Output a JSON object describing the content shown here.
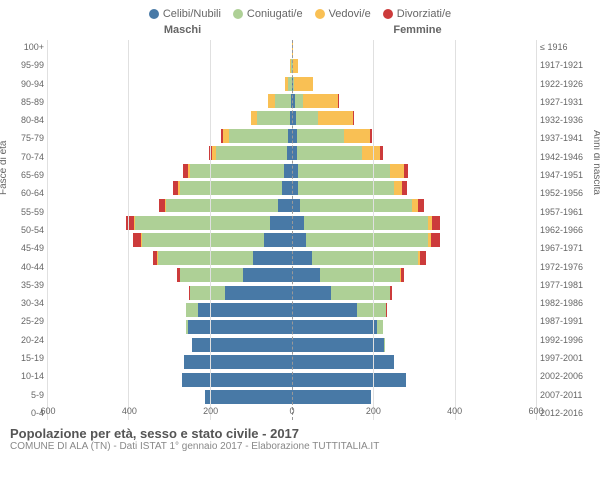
{
  "legend": [
    {
      "label": "Celibi/Nubili",
      "color": "#4879a6"
    },
    {
      "label": "Coniugati/e",
      "color": "#aed096"
    },
    {
      "label": "Vedovi/e",
      "color": "#f9c054"
    },
    {
      "label": "Divorziati/e",
      "color": "#cc3b3b"
    }
  ],
  "section_m": "Maschi",
  "section_f": "Femmine",
  "ylabel_left": "Fasce di età",
  "ylabel_right": "Anni di nascita",
  "title": "Popolazione per età, sesso e stato civile - 2017",
  "subtitle": "COMUNE DI ALA (TN) - Dati ISTAT 1° gennaio 2017 - Elaborazione TUTTITALIA.IT",
  "chart": {
    "type": "population-pyramid",
    "xmax": 600,
    "xticks": [
      0,
      200,
      400,
      600
    ],
    "grid_color": "#e0e0e0",
    "center_color": "#999999",
    "background": "#ffffff",
    "label_fontsize": 9,
    "rows": [
      {
        "age": "100+",
        "birth": "≤ 1916",
        "m": {
          "c": 0,
          "co": 0,
          "v": 0,
          "d": 0
        },
        "f": {
          "c": 0,
          "co": 0,
          "v": 3,
          "d": 0
        }
      },
      {
        "age": "95-99",
        "birth": "1917-1921",
        "m": {
          "c": 0,
          "co": 2,
          "v": 3,
          "d": 0
        },
        "f": {
          "c": 1,
          "co": 1,
          "v": 12,
          "d": 0
        }
      },
      {
        "age": "90-94",
        "birth": "1922-1926",
        "m": {
          "c": 1,
          "co": 8,
          "v": 8,
          "d": 0
        },
        "f": {
          "c": 3,
          "co": 3,
          "v": 45,
          "d": 0
        }
      },
      {
        "age": "85-89",
        "birth": "1927-1931",
        "m": {
          "c": 3,
          "co": 40,
          "v": 15,
          "d": 0
        },
        "f": {
          "c": 8,
          "co": 20,
          "v": 85,
          "d": 1
        }
      },
      {
        "age": "80-84",
        "birth": "1932-1936",
        "m": {
          "c": 5,
          "co": 80,
          "v": 15,
          "d": 2
        },
        "f": {
          "c": 10,
          "co": 55,
          "v": 85,
          "d": 2
        }
      },
      {
        "age": "75-79",
        "birth": "1937-1941",
        "m": {
          "c": 10,
          "co": 145,
          "v": 15,
          "d": 5
        },
        "f": {
          "c": 12,
          "co": 115,
          "v": 65,
          "d": 5
        }
      },
      {
        "age": "70-74",
        "birth": "1942-1946",
        "m": {
          "c": 12,
          "co": 175,
          "v": 10,
          "d": 7
        },
        "f": {
          "c": 12,
          "co": 160,
          "v": 45,
          "d": 6
        }
      },
      {
        "age": "65-69",
        "birth": "1947-1951",
        "m": {
          "c": 20,
          "co": 230,
          "v": 7,
          "d": 10
        },
        "f": {
          "c": 15,
          "co": 225,
          "v": 35,
          "d": 10
        }
      },
      {
        "age": "60-64",
        "birth": "1952-1956",
        "m": {
          "c": 25,
          "co": 250,
          "v": 5,
          "d": 12
        },
        "f": {
          "c": 15,
          "co": 235,
          "v": 20,
          "d": 12
        }
      },
      {
        "age": "55-59",
        "birth": "1957-1961",
        "m": {
          "c": 35,
          "co": 275,
          "v": 3,
          "d": 15
        },
        "f": {
          "c": 20,
          "co": 275,
          "v": 15,
          "d": 15
        }
      },
      {
        "age": "50-54",
        "birth": "1962-1966",
        "m": {
          "c": 55,
          "co": 330,
          "v": 3,
          "d": 20
        },
        "f": {
          "c": 30,
          "co": 305,
          "v": 10,
          "d": 20
        }
      },
      {
        "age": "45-49",
        "birth": "1967-1971",
        "m": {
          "c": 70,
          "co": 300,
          "v": 2,
          "d": 18
        },
        "f": {
          "c": 35,
          "co": 300,
          "v": 8,
          "d": 20
        }
      },
      {
        "age": "40-44",
        "birth": "1972-1976",
        "m": {
          "c": 95,
          "co": 235,
          "v": 1,
          "d": 12
        },
        "f": {
          "c": 50,
          "co": 260,
          "v": 5,
          "d": 15
        }
      },
      {
        "age": "35-39",
        "birth": "1977-1981",
        "m": {
          "c": 120,
          "co": 155,
          "v": 0,
          "d": 7
        },
        "f": {
          "c": 70,
          "co": 195,
          "v": 2,
          "d": 8
        }
      },
      {
        "age": "30-34",
        "birth": "1982-1986",
        "m": {
          "c": 165,
          "co": 85,
          "v": 0,
          "d": 3
        },
        "f": {
          "c": 95,
          "co": 145,
          "v": 1,
          "d": 4
        }
      },
      {
        "age": "25-29",
        "birth": "1987-1991",
        "m": {
          "c": 230,
          "co": 30,
          "v": 0,
          "d": 1
        },
        "f": {
          "c": 160,
          "co": 70,
          "v": 0,
          "d": 1
        }
      },
      {
        "age": "20-24",
        "birth": "1992-1996",
        "m": {
          "c": 255,
          "co": 5,
          "v": 0,
          "d": 0
        },
        "f": {
          "c": 210,
          "co": 15,
          "v": 0,
          "d": 0
        }
      },
      {
        "age": "15-19",
        "birth": "1997-2001",
        "m": {
          "c": 245,
          "co": 0,
          "v": 0,
          "d": 0
        },
        "f": {
          "c": 225,
          "co": 1,
          "v": 0,
          "d": 0
        }
      },
      {
        "age": "10-14",
        "birth": "2002-2006",
        "m": {
          "c": 265,
          "co": 0,
          "v": 0,
          "d": 0
        },
        "f": {
          "c": 250,
          "co": 0,
          "v": 0,
          "d": 0
        }
      },
      {
        "age": "5-9",
        "birth": "2007-2011",
        "m": {
          "c": 270,
          "co": 0,
          "v": 0,
          "d": 0
        },
        "f": {
          "c": 280,
          "co": 0,
          "v": 0,
          "d": 0
        }
      },
      {
        "age": "0-4",
        "birth": "2012-2016",
        "m": {
          "c": 215,
          "co": 0,
          "v": 0,
          "d": 0
        },
        "f": {
          "c": 195,
          "co": 0,
          "v": 0,
          "d": 0
        }
      }
    ]
  }
}
